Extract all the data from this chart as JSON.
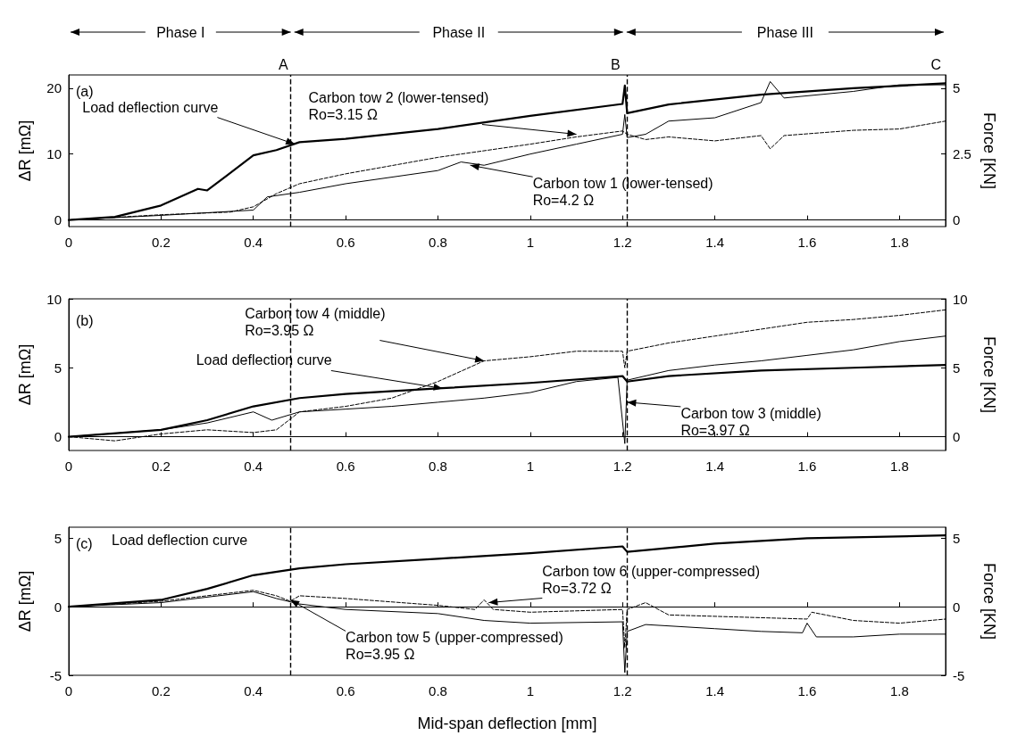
{
  "chart_data": [
    {
      "type": "line",
      "xlim": [
        0,
        1.9
      ],
      "xticks": [
        0,
        0.2,
        0.4,
        0.6,
        0.8,
        1,
        1.2,
        1.4,
        1.6,
        1.8
      ],
      "ylim": [
        -1,
        22
      ],
      "yticks": [
        0,
        10,
        20
      ],
      "y2lim": [
        -0.25,
        5.5
      ],
      "y2ticks": [
        0,
        2.5,
        5
      ],
      "ylabel": "ΔR [mΩ]",
      "y2label": "Force [KN]",
      "series": [
        {
          "color": "#000000",
          "line_style": "solid",
          "axis": "y2",
          "x": [
            0,
            0.1,
            0.2,
            0.28,
            0.3,
            0.4,
            0.45,
            0.5,
            0.6,
            0.8,
            1.0,
            1.2,
            1.205,
            1.21,
            1.3,
            1.5,
            1.7,
            1.9
          ],
          "values": [
            0,
            0.12,
            0.55,
            1.18,
            1.12,
            2.45,
            2.65,
            2.95,
            3.08,
            3.45,
            3.95,
            4.4,
            5.1,
            4.05,
            4.38,
            4.75,
            5.0,
            5.18
          ]
        },
        {
          "color": "#000000",
          "line_style": "dashed",
          "x": [
            0,
            0.2,
            0.35,
            0.4,
            0.45,
            0.5,
            0.6,
            0.8,
            1.0,
            1.1,
            1.2,
            1.21,
            1.25,
            1.3,
            1.4,
            1.5,
            1.52,
            1.55,
            1.7,
            1.8,
            1.9
          ],
          "values": [
            0,
            0.8,
            1.2,
            2,
            4,
            5.5,
            7,
            9.5,
            11.5,
            12.6,
            13.5,
            13,
            12.2,
            12.6,
            12,
            12.8,
            10.8,
            12.8,
            13.6,
            13.8,
            15
          ]
        },
        {
          "color": "#000000",
          "line_style": "solid",
          "x": [
            0,
            0.2,
            0.4,
            0.43,
            0.5,
            0.6,
            0.8,
            0.85,
            0.9,
            1.0,
            1.1,
            1.2,
            1.205,
            1.21,
            1.25,
            1.3,
            1.4,
            1.5,
            1.52,
            1.55,
            1.7,
            1.8,
            1.9
          ],
          "values": [
            0,
            0.7,
            1.5,
            3.5,
            4.2,
            5.5,
            7.5,
            8.8,
            8.3,
            10,
            11.5,
            13,
            16,
            12.5,
            13,
            15,
            15.5,
            17.8,
            21,
            18.5,
            19.5,
            20.5,
            20.5
          ]
        }
      ],
      "ref_lines": [
        {
          "axis": "x",
          "value": 0.485,
          "line_style": "dashed"
        },
        {
          "axis": "x",
          "value": 1.205,
          "line_style": "dashed"
        }
      ],
      "annotations": [
        "Phase I",
        "Phase II",
        "Phase III",
        "(a)",
        "A",
        "B",
        "C",
        {
          "text": "Load deflection curve",
          "x": 0.49,
          "y": 11.5
        },
        {
          "text": "Carbon tow 2 (lower-tensed)\nRo=3.15 Ω",
          "x": 1.1,
          "y": 13
        },
        {
          "text": "Carbon tow 1 (lower-tensed)\nRo=4.2 Ω",
          "x": 0.87,
          "y": 8.3
        }
      ]
    },
    {
      "type": "line",
      "xlim": [
        0,
        1.9
      ],
      "xticks": [
        0,
        0.2,
        0.4,
        0.6,
        0.8,
        1,
        1.2,
        1.4,
        1.6,
        1.8
      ],
      "ylim": [
        -1,
        10
      ],
      "yticks": [
        0,
        5,
        10
      ],
      "y2lim": [
        -1,
        10
      ],
      "y2ticks": [
        0,
        5,
        10
      ],
      "ylabel": "ΔR [mΩ]",
      "y2label": "Force [KN]",
      "series": [
        {
          "color": "#000000",
          "line_style": "solid",
          "axis": "y2",
          "x": [
            0,
            0.2,
            0.3,
            0.4,
            0.5,
            0.6,
            0.8,
            1.0,
            1.2,
            1.21,
            1.3,
            1.5,
            1.7,
            1.9
          ],
          "values": [
            0,
            0.5,
            1.2,
            2.2,
            2.8,
            3.1,
            3.5,
            3.9,
            4.4,
            4,
            4.4,
            4.8,
            5.0,
            5.2
          ]
        },
        {
          "color": "#000000",
          "line_style": "dashed",
          "x": [
            0,
            0.1,
            0.2,
            0.3,
            0.4,
            0.45,
            0.5,
            0.6,
            0.7,
            0.8,
            0.9,
            1.0,
            1.1,
            1.2,
            1.205,
            1.21,
            1.3,
            1.4,
            1.5,
            1.6,
            1.7,
            1.8,
            1.9
          ],
          "values": [
            0,
            -0.3,
            0.2,
            0.5,
            0.3,
            0.5,
            1.8,
            2.2,
            2.8,
            4,
            5.5,
            5.8,
            6.2,
            6.2,
            5,
            6.2,
            6.8,
            7.3,
            7.8,
            8.3,
            8.5,
            8.8,
            9.2
          ]
        },
        {
          "color": "#000000",
          "line_style": "solid",
          "x": [
            0,
            0.2,
            0.3,
            0.4,
            0.44,
            0.5,
            0.6,
            0.7,
            0.8,
            0.9,
            1.0,
            1.1,
            1.19,
            1.205,
            1.21,
            1.3,
            1.4,
            1.5,
            1.6,
            1.7,
            1.8,
            1.9
          ],
          "values": [
            0,
            0.5,
            1,
            1.8,
            1.2,
            1.8,
            2,
            2.2,
            2.5,
            2.8,
            3.2,
            4,
            4.3,
            -0.5,
            4.1,
            4.8,
            5.2,
            5.5,
            5.9,
            6.3,
            6.9,
            7.3
          ]
        }
      ],
      "ref_lines": [
        {
          "axis": "x",
          "value": 0.485,
          "line_style": "dashed"
        },
        {
          "axis": "x",
          "value": 1.205,
          "line_style": "dashed"
        }
      ],
      "annotations": [
        "(b)",
        {
          "text": "Carbon tow 4 (middle)\nRo=3.95 Ω",
          "x": 0.9,
          "y": 5.5
        },
        {
          "text": "Load deflection curve",
          "x": 0.81,
          "y": 3.5
        },
        {
          "text": "Carbon tow 3 (middle)\nRo=3.97 Ω",
          "x": 1.21,
          "y": 2.5
        }
      ]
    },
    {
      "type": "line",
      "xlim": [
        0,
        1.9
      ],
      "xticks": [
        0,
        0.2,
        0.4,
        0.6,
        0.8,
        1,
        1.2,
        1.4,
        1.6,
        1.8
      ],
      "ylim": [
        -5,
        5.8
      ],
      "yticks": [
        -5,
        0,
        5
      ],
      "y2lim": [
        -5,
        5.8
      ],
      "y2ticks": [
        -5,
        0,
        5
      ],
      "ylabel": "ΔR [mΩ]",
      "y2label": "Force [KN]",
      "xlabel": "Mid-span deflection [mm]",
      "series": [
        {
          "color": "#000000",
          "line_style": "solid",
          "axis": "y2",
          "x": [
            0,
            0.2,
            0.3,
            0.4,
            0.5,
            0.6,
            0.8,
            1.0,
            1.2,
            1.21,
            1.4,
            1.6,
            1.9
          ],
          "values": [
            0,
            0.5,
            1.3,
            2.3,
            2.8,
            3.1,
            3.5,
            3.9,
            4.4,
            4.0,
            4.6,
            5.0,
            5.2
          ]
        },
        {
          "color": "#000000",
          "line_style": "dashed",
          "x": [
            0,
            0.2,
            0.4,
            0.45,
            0.48,
            0.5,
            0.6,
            0.8,
            0.88,
            0.9,
            0.92,
            1.0,
            1.2,
            1.205,
            1.21,
            1.25,
            1.3,
            1.5,
            1.6,
            1.61,
            1.7,
            1.8,
            1.9
          ],
          "values": [
            0,
            0.4,
            1.2,
            0.8,
            0.4,
            0.8,
            0.6,
            0.1,
            -0.2,
            0.5,
            -0.2,
            -0.4,
            -0.2,
            -3,
            -0.2,
            0.3,
            -0.6,
            -0.8,
            -0.9,
            -0.4,
            -1,
            -1.2,
            -0.9
          ]
        },
        {
          "color": "#000000",
          "line_style": "solid",
          "x": [
            0,
            0.2,
            0.4,
            0.45,
            0.5,
            0.6,
            0.8,
            0.9,
            1.0,
            1.2,
            1.205,
            1.21,
            1.25,
            1.4,
            1.5,
            1.59,
            1.6,
            1.62,
            1.7,
            1.8,
            1.9
          ],
          "values": [
            0,
            0.3,
            1.1,
            0.6,
            0.2,
            -0.2,
            -0.5,
            -1,
            -1.2,
            -1.1,
            -4.8,
            -1.8,
            -1.3,
            -1.6,
            -1.8,
            -1.9,
            -1.2,
            -2.2,
            -2.2,
            -2,
            -2
          ]
        }
      ],
      "ref_lines": [
        {
          "axis": "x",
          "value": 0.485,
          "line_style": "dashed"
        },
        {
          "axis": "x",
          "value": 1.205,
          "line_style": "dashed"
        }
      ],
      "annotations": [
        "(c)",
        "Load deflection curve",
        {
          "text": "Carbon tow 6 (upper-compressed)\nRo=3.72 Ω",
          "x": 0.91,
          "y": 0.3
        },
        {
          "text": "Carbon tow 5 (upper-compressed)\nRo=3.95 Ω",
          "x": 0.48,
          "y": 0.5
        }
      ]
    }
  ]
}
